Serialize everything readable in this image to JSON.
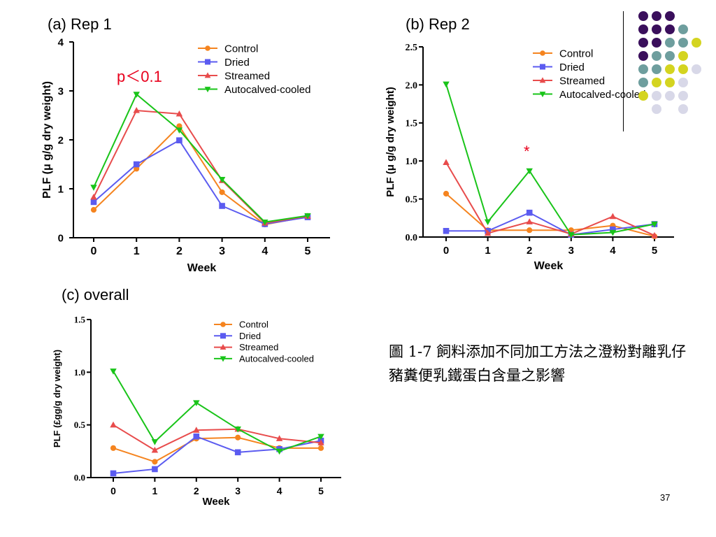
{
  "panels": {
    "a": {
      "title": "(a) Rep 1",
      "annotation": "p＜0.1"
    },
    "b": {
      "title": "(b) Rep 2",
      "annotation": "*"
    },
    "c": {
      "title": "(c) overall"
    }
  },
  "caption": "圖 1-7 飼料添加不同加工方法之澄粉對離乳仔豬糞便乳鐵蛋白含量之影響",
  "page_number": "37",
  "colors": {
    "Control": "#f5841f",
    "Dried": "#5b5bf0",
    "Streamed": "#e84c4c",
    "Autocalved-cooled": "#19c419"
  },
  "markers": {
    "Control": "circle",
    "Dried": "square",
    "Streamed": "triangle-up",
    "Autocalved-cooled": "triangle-down"
  },
  "decoration_colors": {
    "purple": "#3a0f5c",
    "teal": "#6e9e9e",
    "yellow": "#d4d420",
    "lavender": "#d8d8e8"
  },
  "chart_data": [
    {
      "id": "a",
      "type": "line",
      "title": "(a) Rep 1",
      "xlabel": "Week",
      "ylabel": "PLF (μ g/g dry weight)",
      "x": [
        0,
        1,
        2,
        3,
        4,
        5
      ],
      "xticks": [
        "0",
        "1",
        "2",
        "3",
        "4",
        "5"
      ],
      "yticks": [
        "0",
        "1",
        "2",
        "3",
        "4"
      ],
      "ylim": [
        0,
        4
      ],
      "legend_position": "top-right",
      "series": [
        {
          "name": "Control",
          "values": [
            0.57,
            1.41,
            2.28,
            0.93,
            0.27,
            0.43
          ]
        },
        {
          "name": "Dried",
          "values": [
            0.73,
            1.5,
            1.99,
            0.65,
            0.28,
            0.42
          ]
        },
        {
          "name": "Streamed",
          "values": [
            0.83,
            2.6,
            2.53,
            1.17,
            0.3,
            0.44
          ]
        },
        {
          "name": "Autocalved-cooled",
          "values": [
            1.03,
            2.93,
            2.2,
            1.19,
            0.32,
            0.45
          ]
        }
      ]
    },
    {
      "id": "b",
      "type": "line",
      "title": "(b) Rep 2",
      "xlabel": "Week",
      "ylabel": "PLF (μ g/g dry weight)",
      "x": [
        0,
        1,
        2,
        3,
        4,
        5
      ],
      "xticks": [
        "0",
        "1",
        "2",
        "3",
        "4",
        "5"
      ],
      "yticks": [
        "0.0",
        "0.5",
        "1.0",
        "1.5",
        "2.0",
        "2.5"
      ],
      "ylim": [
        0,
        2.5
      ],
      "legend_position": "top-right",
      "series": [
        {
          "name": "Control",
          "values": [
            0.57,
            0.09,
            0.09,
            0.09,
            0.15,
            0.01
          ]
        },
        {
          "name": "Dried",
          "values": [
            0.08,
            0.08,
            0.32,
            0.03,
            0.1,
            0.17
          ]
        },
        {
          "name": "Streamed",
          "values": [
            0.98,
            0.05,
            0.2,
            0.04,
            0.27,
            0.02
          ]
        },
        {
          "name": "Autocalved-cooled",
          "values": [
            2.01,
            0.2,
            0.87,
            0.03,
            0.06,
            0.17
          ]
        }
      ]
    },
    {
      "id": "c",
      "type": "line",
      "title": "(c) overall",
      "xlabel": "Week",
      "ylabel": "PLF (£gg/g dry weight)",
      "x": [
        0,
        1,
        2,
        3,
        4,
        5
      ],
      "xticks": [
        "0",
        "1",
        "2",
        "3",
        "4",
        "5"
      ],
      "yticks": [
        "0.0",
        "0.5",
        "1.0",
        "1.5"
      ],
      "ylim": [
        0,
        1.5
      ],
      "legend_position": "top-right",
      "series": [
        {
          "name": "Control",
          "values": [
            0.28,
            0.15,
            0.37,
            0.38,
            0.28,
            0.28
          ]
        },
        {
          "name": "Dried",
          "values": [
            0.04,
            0.08,
            0.39,
            0.24,
            0.27,
            0.35
          ]
        },
        {
          "name": "Streamed",
          "values": [
            0.5,
            0.26,
            0.45,
            0.46,
            0.37,
            0.33
          ]
        },
        {
          "name": "Autocalved-cooled",
          "values": [
            1.01,
            0.34,
            0.71,
            0.46,
            0.25,
            0.39
          ]
        }
      ]
    }
  ]
}
